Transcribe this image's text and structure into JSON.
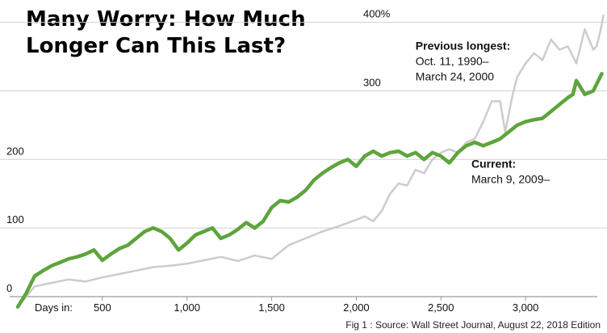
{
  "chart_data": {
    "type": "line",
    "title": "Many Worry: How Much Longer Can This Last?",
    "source": "Fig 1 : Source: Wall Street Journal, August 22, 2018 Edition",
    "x_axis_label": "Days in:",
    "xticks": [
      {
        "value": 500,
        "label": "500"
      },
      {
        "value": 1000,
        "label": "1,000"
      },
      {
        "value": 1500,
        "label": "1,500"
      },
      {
        "value": 2000,
        "label": "2,000"
      },
      {
        "value": 2500,
        "label": "2,500"
      },
      {
        "value": 3000,
        "label": "3,000"
      }
    ],
    "yticks": [
      {
        "value": 0,
        "label": "0"
      },
      {
        "value": 100,
        "label": "100"
      },
      {
        "value": 200,
        "label": "200"
      },
      {
        "value": 300,
        "label": "300"
      },
      {
        "value": 400,
        "label": "400%"
      }
    ],
    "xlim": [
      0,
      3550
    ],
    "ylim": [
      -15,
      420
    ],
    "grid": true,
    "annotations": [
      {
        "series": "previous",
        "lines": [
          "Previous longest:",
          "Oct. 11, 1990–",
          "March 24, 2000"
        ],
        "x": 2350,
        "y": 360
      },
      {
        "series": "current",
        "lines": [
          "Current:",
          "March 9, 2009–"
        ],
        "x": 2680,
        "y": 188
      }
    ],
    "series": [
      {
        "id": "previous",
        "color": "#cccccc",
        "x": [
          0,
          100,
          200,
          300,
          400,
          500,
          600,
          700,
          800,
          900,
          1000,
          1100,
          1200,
          1300,
          1400,
          1500,
          1600,
          1700,
          1800,
          1900,
          2000,
          2050,
          2100,
          2150,
          2200,
          2250,
          2300,
          2350,
          2400,
          2450,
          2500,
          2550,
          2600,
          2650,
          2700,
          2750,
          2800,
          2850,
          2880,
          2900,
          2920,
          2950,
          3000,
          3050,
          3100,
          3150,
          3200,
          3250,
          3300,
          3350,
          3400,
          3420,
          3440,
          3460
        ],
        "values": [
          -15,
          15,
          20,
          25,
          22,
          28,
          33,
          38,
          43,
          45,
          48,
          53,
          58,
          52,
          60,
          55,
          75,
          85,
          95,
          103,
          112,
          117,
          110,
          125,
          150,
          165,
          162,
          185,
          180,
          200,
          210,
          215,
          210,
          225,
          230,
          255,
          285,
          285,
          240,
          265,
          290,
          320,
          340,
          355,
          345,
          375,
          360,
          365,
          340,
          390,
          360,
          365,
          385,
          410
        ]
      },
      {
        "id": "current",
        "color": "#5ea43c",
        "x": [
          0,
          50,
          100,
          150,
          200,
          250,
          300,
          350,
          400,
          450,
          500,
          550,
          600,
          650,
          700,
          750,
          800,
          850,
          900,
          950,
          1000,
          1050,
          1100,
          1150,
          1200,
          1250,
          1300,
          1350,
          1400,
          1450,
          1500,
          1550,
          1600,
          1650,
          1700,
          1750,
          1800,
          1850,
          1900,
          1950,
          2000,
          2050,
          2100,
          2150,
          2200,
          2250,
          2300,
          2350,
          2400,
          2450,
          2500,
          2550,
          2600,
          2650,
          2700,
          2750,
          2800,
          2850,
          2900,
          2950,
          3000,
          3050,
          3100,
          3150,
          3200,
          3250,
          3280,
          3300,
          3350,
          3400,
          3450
        ],
        "values": [
          -15,
          5,
          30,
          38,
          45,
          50,
          55,
          58,
          62,
          68,
          53,
          62,
          70,
          75,
          85,
          95,
          100,
          95,
          85,
          68,
          78,
          90,
          95,
          100,
          85,
          90,
          98,
          108,
          100,
          110,
          130,
          140,
          138,
          145,
          155,
          170,
          180,
          188,
          195,
          200,
          190,
          205,
          212,
          205,
          210,
          212,
          205,
          210,
          200,
          210,
          205,
          195,
          210,
          220,
          225,
          220,
          225,
          230,
          240,
          250,
          255,
          258,
          260,
          270,
          280,
          290,
          295,
          315,
          295,
          300,
          325
        ]
      }
    ]
  }
}
